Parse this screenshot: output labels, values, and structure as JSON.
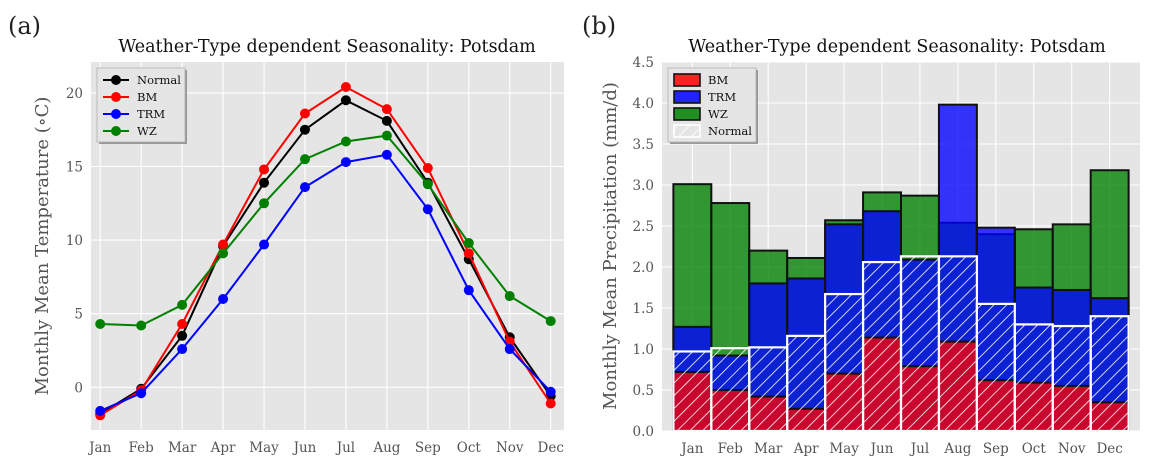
{
  "chart_data": [
    {
      "panel": "(a)",
      "type": "line",
      "title": "Weather-Type dependent Seasonality: Potsdam",
      "xlabel": "",
      "ylabel": "Monthly Mean Temperature (∘C)",
      "categories": [
        "Jan",
        "Feb",
        "Mar",
        "Apr",
        "May",
        "Jun",
        "Jul",
        "Aug",
        "Sep",
        "Oct",
        "Nov",
        "Dec"
      ],
      "ylim": [
        -2.9,
        22.1
      ],
      "yticks": [
        0,
        5,
        10,
        15,
        20
      ],
      "grid": true,
      "legend_position": "top-left",
      "series": [
        {
          "name": "Normal",
          "color": "#000000",
          "values": [
            -1.8,
            -0.1,
            3.5,
            9.6,
            13.9,
            17.5,
            19.5,
            18.1,
            13.9,
            8.7,
            3.4,
            -0.6
          ]
        },
        {
          "name": "BM",
          "color": "#ff0000",
          "values": [
            -1.9,
            -0.2,
            4.3,
            9.7,
            14.8,
            18.6,
            20.4,
            18.9,
            14.9,
            9.1,
            3.1,
            -1.1
          ]
        },
        {
          "name": "TRM",
          "color": "#0000ff",
          "values": [
            -1.6,
            -0.4,
            2.6,
            6.0,
            9.7,
            13.6,
            15.3,
            15.8,
            12.1,
            6.6,
            2.6,
            -0.3
          ]
        },
        {
          "name": "WZ",
          "color": "#008000",
          "values": [
            4.3,
            4.2,
            5.6,
            9.1,
            12.5,
            15.5,
            16.7,
            17.1,
            13.8,
            9.8,
            6.2,
            4.5
          ]
        }
      ]
    },
    {
      "panel": "(b)",
      "type": "bar",
      "title": "Weather-Type dependent Seasonality: Potsdam",
      "xlabel": "",
      "ylabel": "Monthly Mean Precipitation (mm/d)",
      "categories": [
        "Jan",
        "Feb",
        "Mar",
        "Apr",
        "May",
        "Jun",
        "Jul",
        "Aug",
        "Sep",
        "Oct",
        "Nov",
        "Dec"
      ],
      "ylim": [
        0,
        4.5
      ],
      "yticks": [
        "0.0",
        "0.5",
        "1.0",
        "1.5",
        "2.0",
        "2.5",
        "3.0",
        "3.5",
        "4.0",
        "4.5"
      ],
      "grid": true,
      "legend_position": "top-left",
      "series": [
        {
          "name": "BM",
          "color": "#ff0000",
          "values": [
            0.72,
            0.5,
            0.42,
            0.27,
            0.7,
            1.14,
            0.79,
            1.09,
            0.62,
            0.59,
            0.55,
            0.35
          ]
        },
        {
          "name": "TRM",
          "color": "#0000ff",
          "values": [
            1.27,
            0.92,
            1.8,
            1.86,
            2.52,
            2.68,
            2.09,
            3.98,
            2.48,
            1.75,
            1.72,
            1.62
          ]
        },
        {
          "name": "WZ",
          "color": "#008000",
          "values": [
            3.01,
            2.78,
            2.2,
            2.11,
            2.57,
            2.91,
            2.87,
            2.54,
            2.4,
            2.46,
            2.52,
            3.18
          ]
        },
        {
          "name": "Normal",
          "color": "#ffffff",
          "hatch": true,
          "values": [
            0.97,
            1.01,
            1.02,
            1.16,
            1.67,
            2.06,
            2.13,
            2.13,
            1.55,
            1.3,
            1.28,
            1.4
          ]
        }
      ]
    }
  ]
}
